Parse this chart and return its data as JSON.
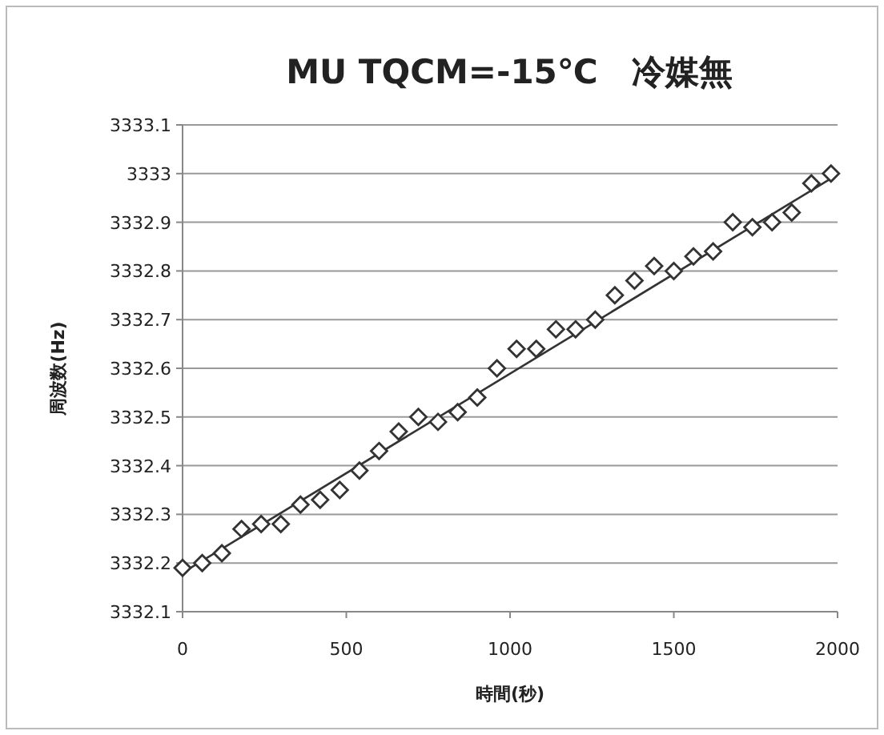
{
  "chart_data": {
    "type": "scatter",
    "title": "MU TQCM=-15℃　冷媒無",
    "xlabel": "時間(秒)",
    "ylabel": "周波数(Hz)",
    "xlim": [
      0,
      2000
    ],
    "xticks": [
      0,
      500,
      1000,
      1500,
      2000
    ],
    "ylim": [
      3332.1,
      3333.1
    ],
    "yticks": [
      3332.1,
      3332.2,
      3332.3,
      3332.4,
      3332.5,
      3332.6,
      3332.7,
      3332.8,
      3332.9,
      3333,
      3333.1
    ],
    "grid": "y",
    "series": [
      {
        "marker": "diamond",
        "color": "#333333",
        "x": [
          0,
          60,
          120,
          180,
          240,
          300,
          360,
          420,
          480,
          540,
          600,
          660,
          720,
          780,
          840,
          900,
          960,
          1020,
          1080,
          1140,
          1200,
          1260,
          1320,
          1380,
          1440,
          1500,
          1560,
          1620,
          1680,
          1740,
          1800,
          1860,
          1920,
          1980
        ],
        "values": [
          3332.19,
          3332.2,
          3332.22,
          3332.27,
          3332.28,
          3332.28,
          3332.32,
          3332.33,
          3332.35,
          3332.39,
          3332.43,
          3332.47,
          3332.5,
          3332.49,
          3332.51,
          3332.54,
          3332.6,
          3332.64,
          3332.64,
          3332.68,
          3332.68,
          3332.7,
          3332.75,
          3332.78,
          3332.81,
          3332.8,
          3332.83,
          3332.84,
          3332.9,
          3332.89,
          3332.9,
          3332.92,
          3332.98,
          3333.0
        ]
      },
      {
        "type": "line",
        "color": "#333333",
        "x": [
          0,
          1980
        ],
        "values": [
          3332.18,
          3332.99
        ]
      }
    ]
  }
}
